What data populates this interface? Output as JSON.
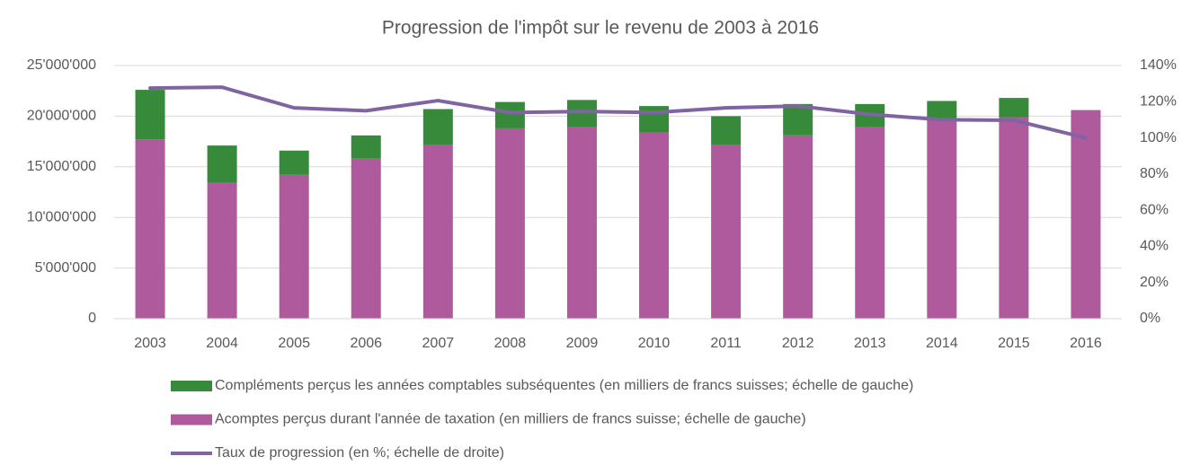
{
  "chart_data": {
    "type": "bar-line",
    "title": "Progression de l'impôt sur le revenu de 2003 à 2016",
    "categories": [
      "2003",
      "2004",
      "2005",
      "2006",
      "2007",
      "2008",
      "2009",
      "2010",
      "2011",
      "2012",
      "2013",
      "2014",
      "2015",
      "2016"
    ],
    "series": [
      {
        "name": "Compléments perçus les années comptables subséquentes (en milliers de francs suisses; échelle de gauche)",
        "color": "#378a3a",
        "type": "bar",
        "values": [
          4900000,
          3700000,
          2400000,
          2300000,
          3500000,
          2600000,
          2700000,
          2600000,
          2800000,
          3100000,
          2300000,
          1800000,
          1900000,
          0
        ]
      },
      {
        "name": "Acomptes perçus durant l'année de taxation (en milliers de francs suisse; échelle de gauche)",
        "color": "#b05a9e",
        "type": "bar",
        "values": [
          17700000,
          13400000,
          14200000,
          15800000,
          17200000,
          18800000,
          18900000,
          18400000,
          17200000,
          18100000,
          18900000,
          19700000,
          19900000,
          20600000
        ]
      },
      {
        "name": "Taux de progression (en %; échelle de droite)",
        "color": "#8064a2",
        "type": "line",
        "axis": "y2",
        "values": [
          127.5,
          128,
          116.6,
          115,
          120.6,
          114,
          114.6,
          114,
          116.6,
          117.6,
          113,
          110,
          109.7,
          100
        ]
      }
    ],
    "ylim": [
      0,
      25000000
    ],
    "yticks": [
      0,
      {
        "value": 5000000,
        "label": "5'000'000"
      },
      {
        "value": 10000000,
        "label": "10'000'000"
      },
      {
        "value": 15000000,
        "label": "15'000'000"
      },
      {
        "value": 20000000,
        "label": "20'000'000"
      },
      {
        "value": 25000000,
        "label": "25'000'000"
      }
    ],
    "y2lim": [
      0,
      140
    ],
    "y2ticks": [
      {
        "value": 0,
        "label": "0%"
      },
      {
        "value": 20,
        "label": "20%"
      },
      {
        "value": 40,
        "label": "40%"
      },
      {
        "value": 60,
        "label": "60%"
      },
      {
        "value": 80,
        "label": "80%"
      },
      {
        "value": 100,
        "label": "100%"
      },
      {
        "value": 120,
        "label": "120%"
      },
      {
        "value": 140,
        "label": "140%"
      }
    ],
    "grid": true
  }
}
